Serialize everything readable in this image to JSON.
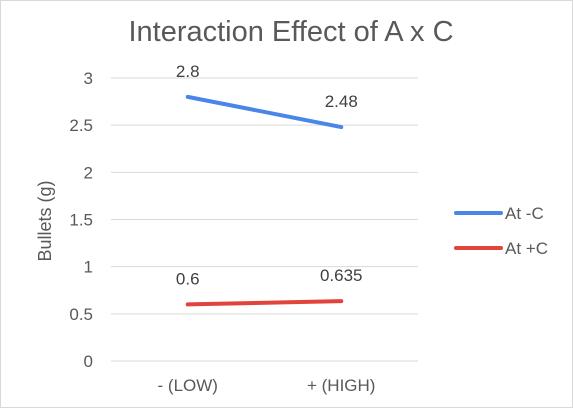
{
  "chart_data": {
    "type": "line",
    "title": "Interaction Effect of A x C",
    "xlabel": "",
    "ylabel": "Bullets (g)",
    "categories": [
      "- (LOW)",
      "+ (HIGH)"
    ],
    "ylim": [
      0,
      3
    ],
    "yticks": [
      0,
      0.5,
      1,
      1.5,
      2,
      2.5,
      3
    ],
    "ytick_labels": [
      "0",
      "0.5",
      "1",
      "1.5",
      "2",
      "2.5",
      "3"
    ],
    "grid": true,
    "legend_position": "right",
    "series": [
      {
        "name": "At -C",
        "values": [
          2.8,
          2.48
        ],
        "labels": [
          "2.8",
          "2.48"
        ],
        "color": "#4a86e8"
      },
      {
        "name": "At +C",
        "values": [
          0.6,
          0.635
        ],
        "labels": [
          "0.6",
          "0.635"
        ],
        "color": "#e0443a"
      }
    ]
  }
}
